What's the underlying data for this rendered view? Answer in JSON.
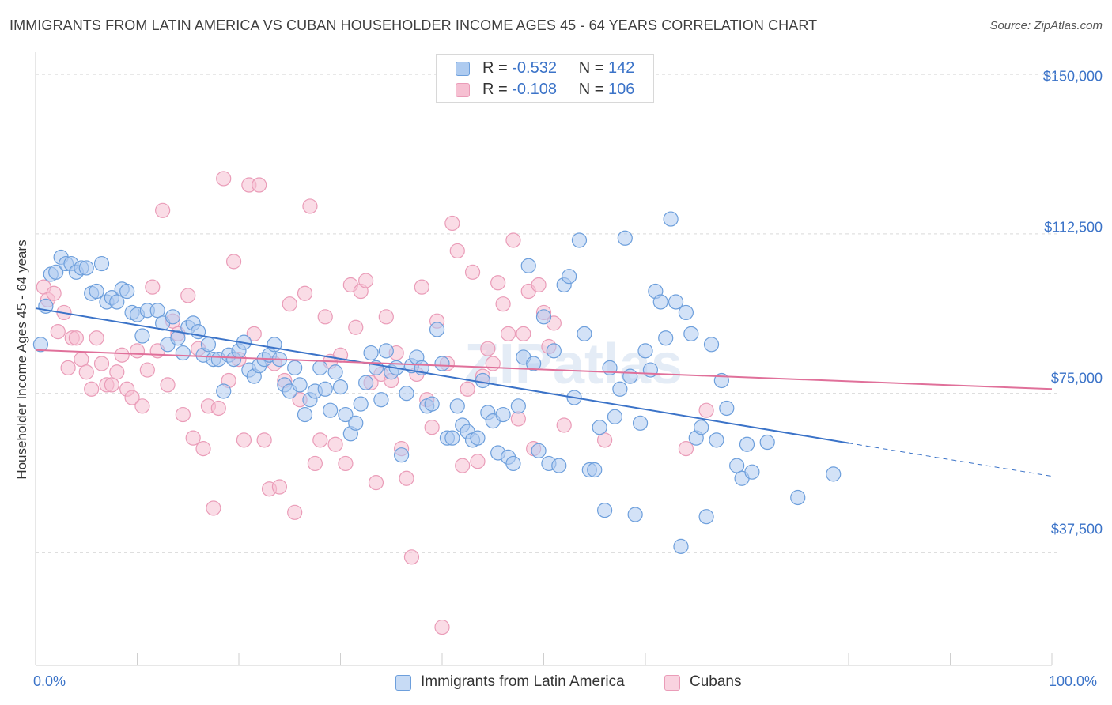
{
  "title": "IMMIGRANTS FROM LATIN AMERICA VS CUBAN HOUSEHOLDER INCOME AGES 45 - 64 YEARS CORRELATION CHART",
  "source": "Source: ZipAtlas.com",
  "watermark": "ZIPatlas",
  "colors": {
    "blue": "#3b73c8",
    "blue_fill": "#aecbf0",
    "blue_stroke": "#6d9fdc",
    "pink": "#e0709a",
    "pink_fill": "#f6c0d2",
    "pink_stroke": "#ea9cb8"
  },
  "legend": {
    "r_label": "R =",
    "n_label": "N =",
    "blue": {
      "r": "-0.532",
      "n": "142"
    },
    "pink": {
      "r": "-0.108",
      "n": "106"
    }
  },
  "bottom_legend": {
    "blue_label": "Immigrants from Latin America",
    "pink_label": "Cubans"
  },
  "chart_data": {
    "type": "scatter",
    "title": "IMMIGRANTS FROM LATIN AMERICA VS CUBAN HOUSEHOLDER INCOME AGES 45 - 64 YEARS CORRELATION CHART",
    "ylabel": "Householder Income Ages 45 - 64 years",
    "xlabel": "",
    "x_tick_labels": [
      "0.0%",
      "100.0%"
    ],
    "y_ticks": [
      {
        "value": 37500,
        "label": "$37,500"
      },
      {
        "value": 75000,
        "label": "$75,000"
      },
      {
        "value": 112500,
        "label": "$112,500"
      },
      {
        "value": 150000,
        "label": "$150,000"
      }
    ],
    "xlim": [
      0,
      100
    ],
    "ylim": [
      11000,
      153000
    ],
    "grid": true,
    "series": [
      {
        "name": "Immigrants from Latin America",
        "color": "blue",
        "r": -0.532,
        "n": 142,
        "trend": {
          "x0": 0,
          "y0": 95000,
          "x1": 80,
          "y1": 63300,
          "dash_x1": 100,
          "dash_y1": 55500
        },
        "points": [
          [
            0.5,
            86.5
          ],
          [
            1,
            95.5
          ],
          [
            1.5,
            103
          ],
          [
            2,
            103.5
          ],
          [
            2.5,
            107
          ],
          [
            3,
            105.5
          ],
          [
            3.5,
            105.5
          ],
          [
            4,
            103.5
          ],
          [
            4.5,
            104.5
          ],
          [
            5,
            104.5
          ],
          [
            5.5,
            98.5
          ],
          [
            6,
            99
          ],
          [
            6.5,
            105.5
          ],
          [
            7,
            96.5
          ],
          [
            7.5,
            97.5
          ],
          [
            8,
            96.5
          ],
          [
            8.5,
            99.5
          ],
          [
            9,
            99
          ],
          [
            9.5,
            94
          ],
          [
            10,
            93.5
          ],
          [
            10.5,
            88.5
          ],
          [
            11,
            94.5
          ],
          [
            12,
            94.5
          ],
          [
            12.5,
            91.5
          ],
          [
            13,
            86.5
          ],
          [
            13.5,
            93
          ],
          [
            14,
            88
          ],
          [
            14.5,
            84.5
          ],
          [
            15,
            90.5
          ],
          [
            15.5,
            91.5
          ],
          [
            16,
            89.5
          ],
          [
            16.5,
            84
          ],
          [
            17,
            86.5
          ],
          [
            17.5,
            83
          ],
          [
            18,
            83
          ],
          [
            18.5,
            75.5
          ],
          [
            19,
            84
          ],
          [
            19.5,
            83
          ],
          [
            20,
            85
          ],
          [
            20.5,
            87
          ],
          [
            21,
            80.5
          ],
          [
            21.5,
            79
          ],
          [
            22,
            81.5
          ],
          [
            22.5,
            83
          ],
          [
            23,
            84
          ],
          [
            23.5,
            86.5
          ],
          [
            24,
            83
          ],
          [
            24.5,
            77
          ],
          [
            25,
            75.5
          ],
          [
            25.5,
            81
          ],
          [
            26,
            77
          ],
          [
            26.5,
            70
          ],
          [
            27,
            73.5
          ],
          [
            27.5,
            75.5
          ],
          [
            28,
            81
          ],
          [
            28.5,
            76
          ],
          [
            29,
            71
          ],
          [
            29.5,
            80
          ],
          [
            30,
            76.5
          ],
          [
            30.5,
            70
          ],
          [
            31,
            65.5
          ],
          [
            31.5,
            68
          ],
          [
            32,
            72.5
          ],
          [
            32.5,
            77.5
          ],
          [
            33,
            84.5
          ],
          [
            33.5,
            81
          ],
          [
            34,
            73.5
          ],
          [
            34.5,
            85
          ],
          [
            35,
            80
          ],
          [
            35.5,
            81
          ],
          [
            36,
            60.5
          ],
          [
            36.5,
            75
          ],
          [
            37,
            81.5
          ],
          [
            37.5,
            83.5
          ],
          [
            38,
            81
          ],
          [
            38.5,
            72
          ],
          [
            39,
            72.5
          ],
          [
            39.5,
            90
          ],
          [
            40,
            82
          ],
          [
            40.5,
            64.5
          ],
          [
            41,
            64.5
          ],
          [
            41.5,
            72
          ],
          [
            42,
            67.5
          ],
          [
            42.5,
            66
          ],
          [
            43,
            64
          ],
          [
            43.5,
            64.5
          ],
          [
            44,
            78
          ],
          [
            44.5,
            70.5
          ],
          [
            45,
            68.5
          ],
          [
            45.5,
            61
          ],
          [
            46,
            70
          ],
          [
            46.5,
            60
          ],
          [
            47,
            58.5
          ],
          [
            47.5,
            72
          ],
          [
            48,
            83.5
          ],
          [
            48.5,
            105
          ],
          [
            49,
            82
          ],
          [
            49.5,
            61.5
          ],
          [
            50,
            93
          ],
          [
            50.5,
            58.5
          ],
          [
            51,
            85
          ],
          [
            51.5,
            58
          ],
          [
            52,
            100.5
          ],
          [
            52.5,
            102.5
          ],
          [
            53,
            74
          ],
          [
            53.5,
            111
          ],
          [
            54,
            89
          ],
          [
            54.5,
            57
          ],
          [
            55,
            57
          ],
          [
            55.5,
            67
          ],
          [
            56,
            47.5
          ],
          [
            56.5,
            81
          ],
          [
            57,
            69.5
          ],
          [
            57.5,
            76
          ],
          [
            58,
            111.5
          ],
          [
            58.5,
            79
          ],
          [
            59,
            46.5
          ],
          [
            59.5,
            68
          ],
          [
            60,
            85
          ],
          [
            60.5,
            80.5
          ],
          [
            61,
            99
          ],
          [
            61.5,
            96.5
          ],
          [
            62,
            88
          ],
          [
            62.5,
            116
          ],
          [
            63,
            96.5
          ],
          [
            63.5,
            39
          ],
          [
            64,
            94
          ],
          [
            64.5,
            89
          ],
          [
            65,
            64.5
          ],
          [
            65.5,
            67
          ],
          [
            66,
            46
          ],
          [
            66.5,
            86.5
          ],
          [
            67,
            64
          ],
          [
            67.5,
            78
          ],
          [
            68,
            71.5
          ],
          [
            69,
            58
          ],
          [
            69.5,
            55
          ],
          [
            70,
            63
          ],
          [
            70.5,
            56.5
          ],
          [
            72,
            63.5
          ],
          [
            75,
            50.5
          ],
          [
            78.5,
            56
          ]
        ],
        "jitter_note": "points as [x_percent, y_thousands]"
      },
      {
        "name": "Cubans",
        "color": "pink",
        "r": -0.108,
        "n": 106,
        "trend": {
          "x0": 0,
          "y0": 85200,
          "x1": 100,
          "y1": 76000
        },
        "points": [
          [
            0.8,
            100
          ],
          [
            1.2,
            97
          ],
          [
            1.8,
            98.5
          ],
          [
            2.2,
            89.5
          ],
          [
            2.8,
            94
          ],
          [
            3.2,
            81
          ],
          [
            3.6,
            88
          ],
          [
            4,
            88
          ],
          [
            4.5,
            83
          ],
          [
            5,
            80
          ],
          [
            5.5,
            76
          ],
          [
            6,
            88
          ],
          [
            6.5,
            82
          ],
          [
            7,
            77
          ],
          [
            7.5,
            77
          ],
          [
            8,
            80
          ],
          [
            8.5,
            84
          ],
          [
            9,
            76
          ],
          [
            9.5,
            74
          ],
          [
            10,
            85
          ],
          [
            10.5,
            72
          ],
          [
            11,
            80.5
          ],
          [
            11.5,
            100
          ],
          [
            12,
            85
          ],
          [
            12.5,
            118
          ],
          [
            13,
            77
          ],
          [
            13.5,
            92
          ],
          [
            14,
            89
          ],
          [
            14.5,
            70
          ],
          [
            15,
            98
          ],
          [
            15.5,
            64.5
          ],
          [
            16,
            85.5
          ],
          [
            16.5,
            62
          ],
          [
            17,
            72
          ],
          [
            17.5,
            48
          ],
          [
            18,
            71.5
          ],
          [
            18.5,
            125.5
          ],
          [
            19,
            78
          ],
          [
            19.5,
            106
          ],
          [
            20,
            83
          ],
          [
            20.5,
            64
          ],
          [
            21,
            124
          ],
          [
            21.5,
            89
          ],
          [
            22,
            124
          ],
          [
            22.5,
            64
          ],
          [
            23,
            52.5
          ],
          [
            23.5,
            82
          ],
          [
            24,
            53
          ],
          [
            24.5,
            78
          ],
          [
            25,
            96
          ],
          [
            25.5,
            47
          ],
          [
            26,
            73.5
          ],
          [
            26.5,
            98.5
          ],
          [
            27,
            119
          ],
          [
            27.5,
            58.5
          ],
          [
            28,
            64
          ],
          [
            28.5,
            93
          ],
          [
            29,
            82.5
          ],
          [
            29.5,
            63
          ],
          [
            30,
            84
          ],
          [
            30.5,
            58.5
          ],
          [
            31,
            100.5
          ],
          [
            31.5,
            90.5
          ],
          [
            32,
            99
          ],
          [
            32.5,
            101.5
          ],
          [
            33,
            77.5
          ],
          [
            33.5,
            54
          ],
          [
            34,
            79.5
          ],
          [
            34.5,
            93
          ],
          [
            35,
            78
          ],
          [
            35.5,
            84.5
          ],
          [
            36,
            62
          ],
          [
            36.5,
            55
          ],
          [
            37,
            36.5
          ],
          [
            37.5,
            79.5
          ],
          [
            38,
            100
          ],
          [
            38.5,
            73.5
          ],
          [
            39,
            67
          ],
          [
            39.5,
            92
          ],
          [
            40,
            20
          ],
          [
            40.5,
            82
          ],
          [
            41,
            115
          ],
          [
            41.5,
            108.5
          ],
          [
            42,
            58
          ],
          [
            42.5,
            76
          ],
          [
            43,
            103.5
          ],
          [
            43.5,
            59
          ],
          [
            44,
            79
          ],
          [
            44.5,
            85.5
          ],
          [
            45,
            82
          ],
          [
            45.5,
            101
          ],
          [
            46,
            96
          ],
          [
            46.5,
            89
          ],
          [
            47,
            111
          ],
          [
            47.5,
            69
          ],
          [
            48,
            89
          ],
          [
            48.5,
            99
          ],
          [
            49,
            62
          ],
          [
            49.5,
            100.5
          ],
          [
            50,
            94
          ],
          [
            50.5,
            86
          ],
          [
            51,
            91.5
          ],
          [
            52,
            67.5
          ],
          [
            56,
            64
          ],
          [
            64,
            62
          ],
          [
            66,
            71
          ]
        ],
        "jitter_note": "points as [x_percent, y_thousands]"
      }
    ]
  }
}
